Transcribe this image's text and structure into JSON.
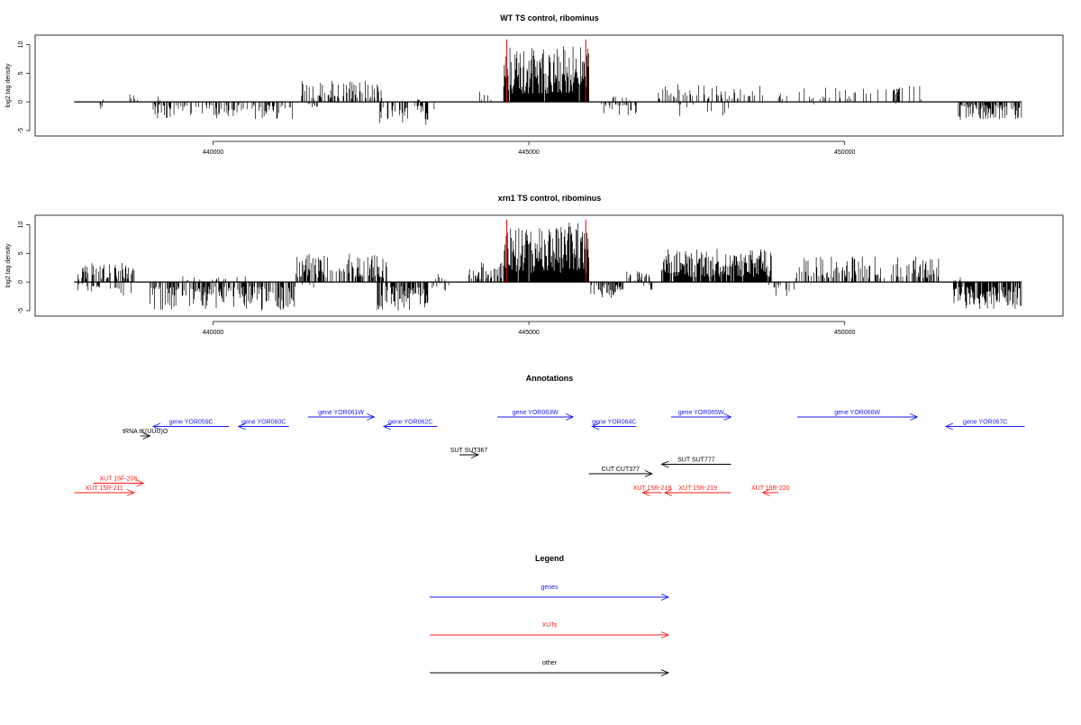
{
  "chart_data": [
    {
      "type": "bar",
      "title": "WT TS control, ribominus",
      "ylabel": "log2 tag density",
      "xlim": [
        437700,
        452850
      ],
      "ylim": [
        -6,
        11.5
      ],
      "x_ticks": [
        440000,
        445000,
        450000
      ],
      "x_tick_labels": [
        "440000",
        "445000",
        "450000"
      ],
      "y_ticks": [
        -5,
        0,
        5,
        10
      ],
      "y_tick_labels": [
        "-5",
        "0",
        "5",
        "10"
      ],
      "baseline": [
        437800,
        452800
      ],
      "markers": [
        444650,
        445900
      ],
      "segments": [
        {
          "start": 438050,
          "end": 438300,
          "sign": 1,
          "density": 0.06,
          "max": 1.3,
          "seed": 11
        },
        {
          "start": 438200,
          "end": 438250,
          "sign": -1,
          "density": 0.3,
          "max": 1.5,
          "seed": 12
        },
        {
          "start": 438650,
          "end": 438800,
          "sign": 1,
          "density": 0.15,
          "max": 1.5,
          "seed": 13
        },
        {
          "start": 439100,
          "end": 439200,
          "sign": 1,
          "density": 0.3,
          "max": 1.0,
          "seed": 14
        },
        {
          "start": 439050,
          "end": 441300,
          "sign": -1,
          "density": 0.4,
          "max": 3.0,
          "seed": 15
        },
        {
          "start": 441400,
          "end": 442700,
          "sign": 1,
          "density": 0.4,
          "max": 3.8,
          "seed": 16
        },
        {
          "start": 441500,
          "end": 441650,
          "sign": -1,
          "density": 0.2,
          "max": 1.0,
          "seed": 17
        },
        {
          "start": 442600,
          "end": 443500,
          "sign": -1,
          "density": 0.45,
          "max": 4.2,
          "seed": 18
        },
        {
          "start": 443200,
          "end": 443300,
          "sign": 1,
          "density": 0.3,
          "max": 1.2,
          "seed": 19
        },
        {
          "start": 444200,
          "end": 444400,
          "sign": 1,
          "density": 0.15,
          "max": 2.5,
          "seed": 20
        },
        {
          "start": 444600,
          "end": 445950,
          "sign": 1,
          "density": 0.95,
          "max": 9.8,
          "seed": 21
        },
        {
          "start": 446150,
          "end": 446700,
          "sign": -1,
          "density": 0.3,
          "max": 2.5,
          "seed": 22
        },
        {
          "start": 446250,
          "end": 446650,
          "sign": 1,
          "density": 0.15,
          "max": 1.2,
          "seed": 23
        },
        {
          "start": 447000,
          "end": 448700,
          "sign": 1,
          "density": 0.3,
          "max": 3.2,
          "seed": 24
        },
        {
          "start": 447300,
          "end": 448200,
          "sign": -1,
          "density": 0.08,
          "max": 2.5,
          "seed": 25
        },
        {
          "start": 448900,
          "end": 451400,
          "sign": 1,
          "density": 0.15,
          "max": 2.8,
          "seed": 26
        },
        {
          "start": 449500,
          "end": 451300,
          "sign": -1,
          "density": 0.03,
          "max": 0.8,
          "seed": 27
        },
        {
          "start": 451800,
          "end": 452800,
          "sign": -1,
          "density": 0.6,
          "max": 3.2,
          "seed": 28
        }
      ]
    },
    {
      "type": "bar",
      "title": "xrn1 TS control, ribominus",
      "ylabel": "log2 tag density",
      "xlim": [
        437700,
        452850
      ],
      "ylim": [
        -6,
        11.5
      ],
      "x_ticks": [
        440000,
        445000,
        450000
      ],
      "x_tick_labels": [
        "440000",
        "445000",
        "450000"
      ],
      "y_ticks": [
        -5,
        0,
        5,
        10
      ],
      "y_tick_labels": [
        "-5",
        "0",
        "5",
        "10"
      ],
      "baseline": [
        437800,
        452800
      ],
      "markers": [
        444650,
        445900
      ],
      "segments": [
        {
          "start": 437850,
          "end": 438750,
          "sign": 1,
          "density": 0.5,
          "max": 3.5,
          "seed": 31
        },
        {
          "start": 437850,
          "end": 438700,
          "sign": -1,
          "density": 0.2,
          "max": 2.5,
          "seed": 32
        },
        {
          "start": 439000,
          "end": 441300,
          "sign": -1,
          "density": 0.6,
          "max": 5.0,
          "seed": 33
        },
        {
          "start": 439500,
          "end": 440700,
          "sign": 1,
          "density": 0.08,
          "max": 1.0,
          "seed": 34
        },
        {
          "start": 441300,
          "end": 442750,
          "sign": 1,
          "density": 0.55,
          "max": 5.0,
          "seed": 35
        },
        {
          "start": 441400,
          "end": 441600,
          "sign": -1,
          "density": 0.2,
          "max": 1.0,
          "seed": 36
        },
        {
          "start": 442600,
          "end": 443400,
          "sign": -1,
          "density": 0.7,
          "max": 5.0,
          "seed": 37
        },
        {
          "start": 443300,
          "end": 443800,
          "sign": 1,
          "density": 0.15,
          "max": 1.5,
          "seed": 38
        },
        {
          "start": 443450,
          "end": 443800,
          "sign": -1,
          "density": 0.2,
          "max": 1.5,
          "seed": 39
        },
        {
          "start": 444050,
          "end": 444600,
          "sign": 1,
          "density": 0.5,
          "max": 3.5,
          "seed": 40
        },
        {
          "start": 444600,
          "end": 445950,
          "sign": 1,
          "density": 0.97,
          "max": 10.5,
          "seed": 41
        },
        {
          "start": 445950,
          "end": 446500,
          "sign": -1,
          "density": 0.6,
          "max": 3.0,
          "seed": 42
        },
        {
          "start": 446500,
          "end": 447000,
          "sign": 1,
          "density": 0.3,
          "max": 2.0,
          "seed": 43
        },
        {
          "start": 446800,
          "end": 447000,
          "sign": -1,
          "density": 0.2,
          "max": 1.5,
          "seed": 44
        },
        {
          "start": 447100,
          "end": 448850,
          "sign": 1,
          "density": 0.9,
          "max": 5.8,
          "seed": 45
        },
        {
          "start": 448800,
          "end": 449200,
          "sign": -1,
          "density": 0.2,
          "max": 2.5,
          "seed": 46
        },
        {
          "start": 449200,
          "end": 451500,
          "sign": 1,
          "density": 0.4,
          "max": 4.5,
          "seed": 47
        },
        {
          "start": 451700,
          "end": 452800,
          "sign": -1,
          "density": 0.7,
          "max": 5.0,
          "seed": 48
        },
        {
          "start": 451700,
          "end": 451900,
          "sign": 1,
          "density": 0.2,
          "max": 1.0,
          "seed": 49
        }
      ]
    }
  ],
  "annotations": {
    "title": "Annotations",
    "features": [
      {
        "label": "gene YOR059C",
        "type": "gene",
        "start": 440250,
        "end": 439050,
        "row": 3
      },
      {
        "label": "gene YOR060C",
        "type": "gene",
        "start": 441200,
        "end": 440400,
        "row": 3
      },
      {
        "label": "gene YOR061W",
        "type": "gene",
        "start": 441500,
        "end": 442550,
        "row": 2
      },
      {
        "label": "gene YOR062C",
        "type": "gene",
        "start": 443550,
        "end": 442700,
        "row": 3
      },
      {
        "label": "gene YOR063W",
        "type": "gene",
        "start": 444500,
        "end": 445700,
        "row": 2
      },
      {
        "label": "gene YOR064C",
        "type": "gene",
        "start": 446700,
        "end": 446000,
        "row": 3
      },
      {
        "label": "gene YOR065W",
        "type": "gene",
        "start": 447250,
        "end": 448200,
        "row": 2
      },
      {
        "label": "gene YOR066W",
        "type": "gene",
        "start": 449250,
        "end": 451150,
        "row": 2
      },
      {
        "label": "gene YOR067C",
        "type": "gene",
        "start": 452850,
        "end": 451600,
        "row": 3
      },
      {
        "label": "tRNA tK(UUU)O",
        "type": "other",
        "start": 438850,
        "end": 439000,
        "row": 4
      },
      {
        "label": "SUT SUT367",
        "type": "other",
        "start": 443900,
        "end": 444200,
        "row": 6
      },
      {
        "label": "SUT SUT777",
        "type": "other",
        "start": 448200,
        "end": 447100,
        "row": 7
      },
      {
        "label": "CUT CUT377",
        "type": "other",
        "start": 445950,
        "end": 446950,
        "row": 8
      },
      {
        "label": "XUT 15F-206",
        "type": "xut",
        "start": 438100,
        "end": 438900,
        "row": 9
      },
      {
        "label": "XUT 15R-211",
        "type": "xut",
        "start": 437800,
        "end": 438750,
        "row": 10
      },
      {
        "label": "XUT 15R-218",
        "type": "xut",
        "start": 447100,
        "end": 446800,
        "row": 10
      },
      {
        "label": "XUT 15R-219",
        "type": "xut",
        "start": 448200,
        "end": 447150,
        "row": 10
      },
      {
        "label": "XUT 15R-220",
        "type": "xut",
        "start": 448950,
        "end": 448700,
        "row": 10
      }
    ]
  },
  "legend": {
    "title": "Legend",
    "items": [
      {
        "label": "genes",
        "type": "gene"
      },
      {
        "label": "XUTs",
        "type": "xut"
      },
      {
        "label": "other",
        "type": "other"
      }
    ]
  },
  "colors": {
    "gene": "#1a1aff",
    "xut": "#ff1a1a",
    "other": "#000000",
    "marker": "#e00000",
    "track": "#000000"
  }
}
